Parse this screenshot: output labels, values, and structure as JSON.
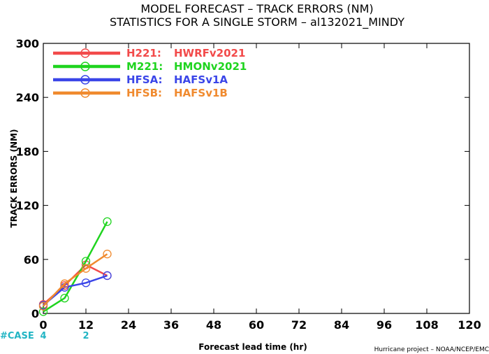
{
  "chart_data": {
    "type": "line",
    "title": "MODEL FORECAST – TRACK ERRORS (NM)",
    "subtitle": "STATISTICS FOR A SINGLE STORM – al132021_MINDY",
    "xlabel": "Forecast lead time (hr)",
    "ylabel": "TRACK ERRORS (NM)",
    "credit": "Hurricane project – NOAA/NCEP/EMC",
    "xlim": [
      0,
      120
    ],
    "ylim": [
      0,
      300
    ],
    "xticks": [
      "0",
      "12",
      "24",
      "36",
      "48",
      "60",
      "72",
      "84",
      "96",
      "108",
      "120"
    ],
    "yticks": [
      "0",
      "60",
      "120",
      "180",
      "240",
      "300"
    ],
    "xtick_values": [
      0,
      12,
      24,
      36,
      48,
      60,
      72,
      84,
      96,
      108,
      120
    ],
    "ytick_values": [
      0,
      60,
      120,
      180,
      240,
      300
    ],
    "grid": false,
    "legend_position": "top-left",
    "cases": {
      "label": "#CASE",
      "values": [
        {
          "x": 0,
          "label": "4"
        },
        {
          "x": 12,
          "label": "2"
        }
      ]
    },
    "series": [
      {
        "name": "H221:",
        "desc": "HWRFv2021",
        "color": "#f24a4a",
        "x": [
          0,
          6,
          12,
          18
        ],
        "values": [
          10,
          31,
          54,
          42
        ]
      },
      {
        "name": "M221:",
        "desc": "HMONv2021",
        "color": "#1fd41f",
        "x": [
          0,
          6,
          12,
          18
        ],
        "values": [
          2,
          17,
          58,
          102
        ]
      },
      {
        "name": "HFSA:",
        "desc": "HAFSv1A",
        "color": "#3a45e8",
        "x": [
          0,
          6,
          12,
          18
        ],
        "values": [
          9,
          29,
          34,
          42
        ]
      },
      {
        "name": "HFSB:",
        "desc": "HAFSv1B",
        "color": "#f08a2e",
        "x": [
          0,
          6,
          12,
          18
        ],
        "values": [
          8,
          33,
          50,
          66
        ]
      }
    ]
  }
}
